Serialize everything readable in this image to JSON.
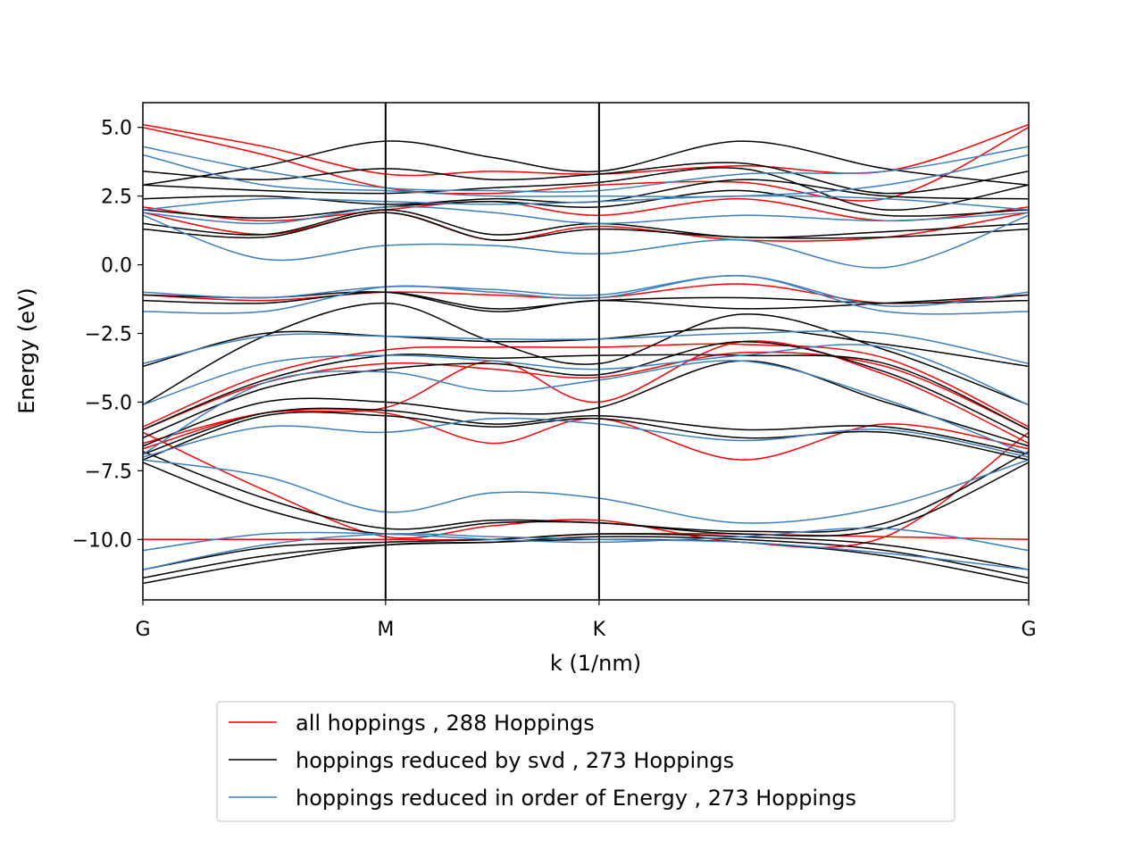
{
  "colors": {
    "all": "#ff0000",
    "svd": "#000000",
    "energy": "#3c7fbf",
    "frame": "#000000",
    "legend_border": "#cccccc"
  },
  "chart_data": {
    "type": "line",
    "title": "",
    "xlabel": "k (1/nm)",
    "ylabel": "Energy (eV)",
    "ylim": [
      -12.2,
      5.9
    ],
    "xlim": [
      0,
      1
    ],
    "grid": false,
    "legend_position": "bottom-center (below plot)",
    "x_ticks": [
      {
        "label": "G",
        "x": 0
      },
      {
        "label": "M",
        "x": 0.274
      },
      {
        "label": "K",
        "x": 0.515
      },
      {
        "label": "G",
        "x": 1
      }
    ],
    "y_ticks": [
      {
        "label": "5.0",
        "y": 5.0
      },
      {
        "label": "2.5",
        "y": 2.5
      },
      {
        "label": "0.0",
        "y": 0.0
      },
      {
        "label": "−2.5",
        "y": -2.5
      },
      {
        "label": "−5.0",
        "y": -5.0
      },
      {
        "label": "−7.5",
        "y": -7.5
      },
      {
        "label": "−10.0",
        "y": -10.0
      }
    ],
    "vlines_x": [
      0.274,
      0.515
    ],
    "x": [
      0,
      0.137,
      0.274,
      0.395,
      0.515,
      0.676,
      0.838,
      1.0
    ],
    "series": [
      {
        "name": "all hoppings , 288 Hoppings",
        "color_key": "all",
        "bands": [
          [
            5.1,
            4.3,
            3.3,
            3.4,
            3.3,
            3.6,
            3.4,
            5.1
          ],
          [
            5.0,
            4.0,
            2.8,
            2.6,
            2.9,
            3.0,
            2.4,
            5.0
          ],
          [
            2.1,
            1.6,
            2.0,
            2.3,
            1.8,
            2.4,
            1.6,
            2.1
          ],
          [
            1.9,
            1.1,
            1.9,
            0.9,
            1.4,
            0.9,
            1.0,
            1.9
          ],
          [
            -1.1,
            -1.3,
            -1.0,
            -1.1,
            -1.2,
            -0.7,
            -1.4,
            -1.1
          ],
          [
            -5.9,
            -4.0,
            -3.1,
            -3.0,
            -3.0,
            -2.9,
            -3.4,
            -5.9
          ],
          [
            -6.0,
            -4.3,
            -3.6,
            -3.8,
            -4.1,
            -3.2,
            -3.7,
            -6.0
          ],
          [
            -6.5,
            -5.4,
            -5.2,
            -3.5,
            -5.0,
            -2.8,
            -4.0,
            -6.5
          ],
          [
            -6.7,
            -5.4,
            -5.4,
            -6.5,
            -5.6,
            -7.1,
            -5.8,
            -6.7
          ],
          [
            -6.1,
            -8.2,
            -9.9,
            -9.5,
            -9.3,
            -10.1,
            -9.9,
            -6.1
          ],
          [
            -10.0,
            -10.0,
            -10.0,
            -10.0,
            -9.8,
            -9.8,
            -9.9,
            -10.0
          ]
        ]
      },
      {
        "name": "hoppings reduced by svd , 273 Hoppings",
        "color_key": "svd",
        "bands": [
          [
            2.9,
            3.6,
            4.5,
            3.9,
            3.4,
            4.5,
            3.5,
            2.9
          ],
          [
            3.4,
            3.1,
            3.5,
            3.1,
            3.3,
            3.7,
            2.6,
            3.4
          ],
          [
            2.9,
            2.7,
            2.6,
            2.8,
            3.0,
            3.5,
            2.0,
            2.9
          ],
          [
            2.4,
            2.5,
            2.2,
            2.4,
            2.3,
            3.1,
            2.5,
            2.4
          ],
          [
            2.0,
            1.7,
            2.1,
            2.3,
            2.1,
            2.7,
            1.8,
            2.0
          ],
          [
            1.5,
            1.1,
            2.0,
            1.1,
            1.5,
            1.0,
            1.2,
            1.5
          ],
          [
            1.3,
            1.0,
            1.9,
            0.9,
            1.3,
            1.0,
            1.0,
            1.3
          ],
          [
            -1.1,
            -1.2,
            -1.0,
            -1.7,
            -1.3,
            -1.6,
            -1.4,
            -1.1
          ],
          [
            -1.3,
            -1.4,
            -1.0,
            -1.6,
            -1.3,
            -1.2,
            -1.4,
            -1.3
          ],
          [
            -3.7,
            -2.5,
            -2.6,
            -2.8,
            -2.7,
            -2.3,
            -2.9,
            -3.7
          ],
          [
            -5.1,
            -2.6,
            -1.4,
            -2.8,
            -3.6,
            -1.8,
            -3.1,
            -5.1
          ],
          [
            -6.0,
            -4.2,
            -3.3,
            -3.4,
            -3.3,
            -3.3,
            -3.6,
            -6.0
          ],
          [
            -6.3,
            -4.5,
            -3.8,
            -3.6,
            -4.0,
            -2.8,
            -3.9,
            -6.3
          ],
          [
            -6.6,
            -5.0,
            -5.0,
            -5.4,
            -5.2,
            -3.5,
            -5.0,
            -6.6
          ],
          [
            -6.9,
            -5.4,
            -5.3,
            -5.8,
            -5.5,
            -6.0,
            -5.9,
            -6.9
          ],
          [
            -7.1,
            -5.5,
            -5.5,
            -5.9,
            -5.6,
            -6.3,
            -6.1,
            -7.1
          ],
          [
            -6.8,
            -8.5,
            -9.6,
            -9.3,
            -9.4,
            -9.7,
            -9.4,
            -6.8
          ],
          [
            -7.2,
            -8.9,
            -9.8,
            -9.4,
            -9.4,
            -9.8,
            -9.6,
            -7.2
          ],
          [
            -11.1,
            -10.3,
            -10.1,
            -10.0,
            -9.8,
            -9.9,
            -10.2,
            -11.1
          ],
          [
            -11.4,
            -10.6,
            -10.2,
            -10.1,
            -9.9,
            -10.0,
            -10.4,
            -11.4
          ],
          [
            -11.6,
            -10.8,
            -10.2,
            -10.1,
            -10.0,
            -10.1,
            -10.6,
            -11.6
          ]
        ]
      },
      {
        "name": "hoppings reduced in order of Energy , 273 Hoppings",
        "color_key": "energy",
        "bands": [
          [
            4.3,
            3.4,
            2.8,
            2.7,
            2.7,
            3.3,
            3.4,
            4.3
          ],
          [
            4.0,
            2.9,
            2.7,
            2.5,
            2.5,
            2.5,
            2.9,
            4.0
          ],
          [
            2.0,
            2.4,
            2.3,
            2.2,
            2.3,
            2.5,
            2.4,
            2.0
          ],
          [
            1.9,
            1.5,
            2.1,
            1.9,
            1.5,
            1.8,
            1.6,
            1.9
          ],
          [
            1.8,
            0.2,
            0.7,
            0.7,
            0.4,
            0.9,
            -0.1,
            1.8
          ],
          [
            -1.0,
            -1.2,
            -0.8,
            -0.9,
            -1.1,
            -0.4,
            -1.5,
            -1.0
          ],
          [
            -1.7,
            -1.7,
            -0.8,
            -1.0,
            -1.2,
            -0.4,
            -1.7,
            -1.7
          ],
          [
            -3.6,
            -2.6,
            -2.6,
            -2.7,
            -2.7,
            -2.5,
            -2.5,
            -3.6
          ],
          [
            -5.1,
            -3.6,
            -3.3,
            -3.5,
            -3.8,
            -3.3,
            -3.0,
            -5.1
          ],
          [
            -6.9,
            -4.3,
            -3.9,
            -4.6,
            -4.2,
            -3.5,
            -4.9,
            -6.9
          ],
          [
            -7.0,
            -5.9,
            -6.1,
            -5.6,
            -5.8,
            -6.4,
            -6.0,
            -7.0
          ],
          [
            -7.1,
            -7.7,
            -9.0,
            -8.3,
            -8.5,
            -9.4,
            -8.8,
            -7.1
          ],
          [
            -10.4,
            -9.8,
            -9.8,
            -10.0,
            -10.1,
            -9.9,
            -9.6,
            -10.4
          ],
          [
            -11.1,
            -10.2,
            -9.8,
            -9.9,
            -10.0,
            -10.1,
            -10.5,
            -11.1
          ]
        ]
      }
    ]
  }
}
